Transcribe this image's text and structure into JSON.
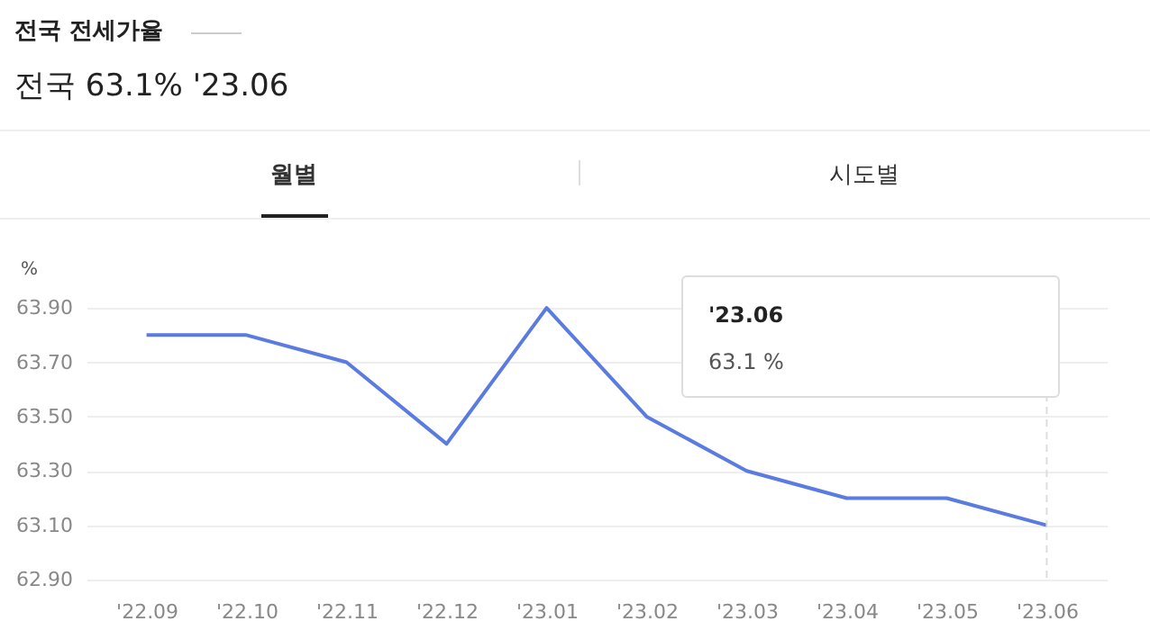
{
  "chart_data": {
    "type": "line",
    "title": "전국 전세가율",
    "subtitle": "전국 63.1% '23.06",
    "ylabel": "%",
    "categories": [
      "'22.09",
      "'22.10",
      "'22.11",
      "'22.12",
      "'23.01",
      "'23.02",
      "'23.03",
      "'23.04",
      "'23.05",
      "'23.06"
    ],
    "series": [
      {
        "color": "#5a7be0",
        "values": [
          63.8,
          63.8,
          63.7,
          63.4,
          63.9,
          63.5,
          63.3,
          63.2,
          63.2,
          63.1
        ]
      }
    ],
    "ylim": [
      62.9,
      64.0
    ],
    "yticks": [
      {
        "value": 62.9,
        "label": "62.90"
      },
      {
        "value": 63.1,
        "label": "63.10"
      },
      {
        "value": 63.3,
        "label": "63.30"
      },
      {
        "value": 63.5,
        "label": "63.50"
      },
      {
        "value": 63.7,
        "label": "63.70"
      },
      {
        "value": 63.9,
        "label": "63.90"
      }
    ],
    "grid": "y",
    "marker": "none",
    "line_style": "solid",
    "ref_lines": [
      {
        "axis": "x",
        "value": "'23.06",
        "color": "#dddddd",
        "line_style": "dashed"
      }
    ],
    "annotations": [
      "월별",
      "시도별",
      "'23.06",
      "63.1 %"
    ]
  }
}
